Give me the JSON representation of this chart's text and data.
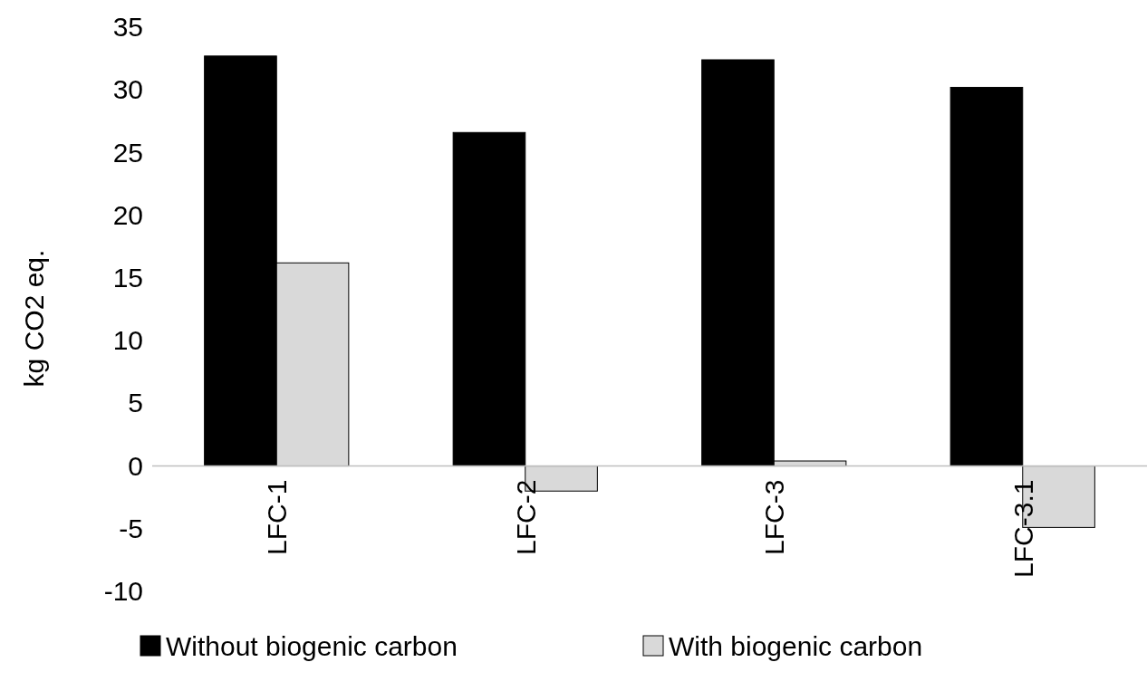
{
  "chart_data": {
    "type": "bar",
    "ylabel": "kg CO2 eq.",
    "categories": [
      "LFC-1",
      "LFC-2",
      "LFC-3",
      "LFC-3.1"
    ],
    "series": [
      {
        "name": "Without biogenic carbon",
        "color": "#000000",
        "values": [
          32.7,
          26.6,
          32.4,
          30.2
        ]
      },
      {
        "name": "With biogenic carbon",
        "color": "#d9d9d9",
        "values": [
          16.2,
          -2.0,
          0.4,
          -4.9
        ]
      }
    ],
    "ylim": [
      -10,
      35
    ],
    "yticks": [
      -10,
      -5,
      0,
      5,
      10,
      15,
      20,
      25,
      30,
      35
    ],
    "grid": false,
    "legend": "bottom"
  }
}
